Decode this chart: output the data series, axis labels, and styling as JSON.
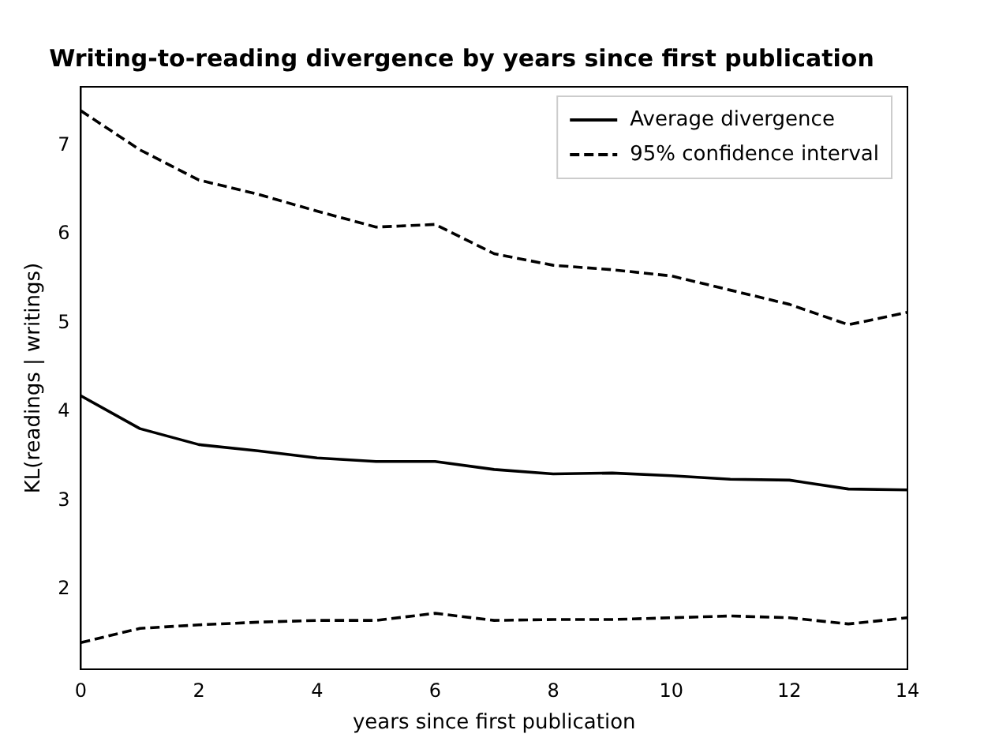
{
  "chart_data": {
    "type": "line",
    "title": "Writing-to-reading divergence by years since first publication",
    "xlabel": "years since first publication",
    "ylabel": "KL(readings | writings)",
    "x": [
      0,
      1,
      2,
      3,
      4,
      5,
      6,
      7,
      8,
      9,
      10,
      11,
      12,
      13,
      14
    ],
    "series": [
      {
        "name": "Average divergence",
        "color": "#000000",
        "line_style": "solid",
        "values": [
          4.18,
          3.81,
          3.63,
          3.56,
          3.48,
          3.44,
          3.44,
          3.35,
          3.3,
          3.31,
          3.28,
          3.24,
          3.23,
          3.13,
          3.12
        ]
      },
      {
        "name": "95% confidence interval",
        "color": "#000000",
        "line_style": "dashed",
        "values": [
          7.39,
          6.95,
          6.61,
          6.45,
          6.26,
          6.08,
          6.11,
          5.78,
          5.65,
          5.6,
          5.53,
          5.37,
          5.21,
          4.98,
          5.12
        ]
      },
      {
        "color": "#000000",
        "line_style": "dashed",
        "values": [
          1.4,
          1.56,
          1.6,
          1.63,
          1.65,
          1.65,
          1.73,
          1.65,
          1.66,
          1.66,
          1.68,
          1.7,
          1.68,
          1.61,
          1.68
        ]
      }
    ],
    "xlim": [
      0,
      14
    ],
    "xticks": [
      0,
      2,
      4,
      6,
      8,
      10,
      12,
      14
    ],
    "ylim": [
      1.1,
      7.66
    ],
    "yticks": [
      2,
      3,
      4,
      5,
      6,
      7
    ],
    "grid": false,
    "legend": "top right",
    "marker": "none"
  }
}
